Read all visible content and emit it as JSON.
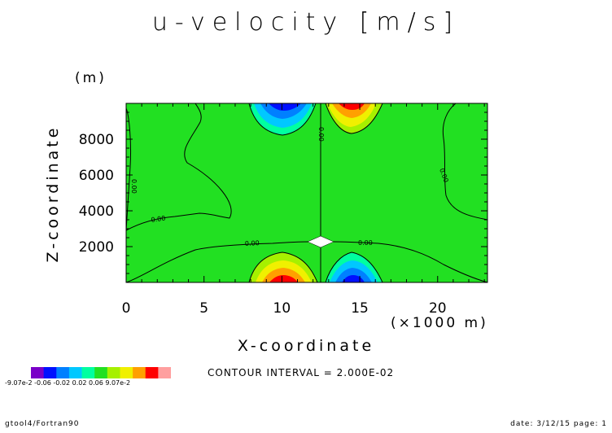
{
  "chart_data": {
    "type": "heatmap",
    "title": "u-velocity [m/s]",
    "xlabel": "X-coordinate",
    "x_unit": "(×1000 m)",
    "ylabel": "Z-coordinate",
    "y_unit": "(m)",
    "xlim": [
      0,
      23.2
    ],
    "ylim": [
      0,
      10000
    ],
    "x_ticks": [
      "0",
      "5",
      "10",
      "15",
      "20"
    ],
    "y_ticks": [
      "2000",
      "4000",
      "6000",
      "8000"
    ],
    "contour_labels": [
      "0.00",
      "0.00",
      "0.00",
      "0.00",
      "0.00",
      "0.00",
      "0.00"
    ],
    "levels": [
      -0.0907,
      -0.08,
      -0.06,
      -0.04,
      -0.02,
      0.0,
      0.02,
      0.04,
      0.06,
      0.08,
      0.0907
    ],
    "colorbar_labels": "-9.07e-2 -0.06 -0.02 0.02 0.06 9.07e-2",
    "colors": {
      "background_level": "#22e022",
      "level_colors": [
        "#7a00c8",
        "#0010ff",
        "#0080ff",
        "#00c8ff",
        "#00ffa0",
        "#22e022",
        "#a6f000",
        "#f0f000",
        "#ffa000",
        "#ff0000",
        "#ff9f9f"
      ]
    },
    "contour_interval_note": "CONTOUR INTERVAL = 2.000E-02",
    "grid": false
  },
  "footer": {
    "left": "gtool4/Fortran90",
    "right": "date: 3/12/15 page: 1"
  }
}
